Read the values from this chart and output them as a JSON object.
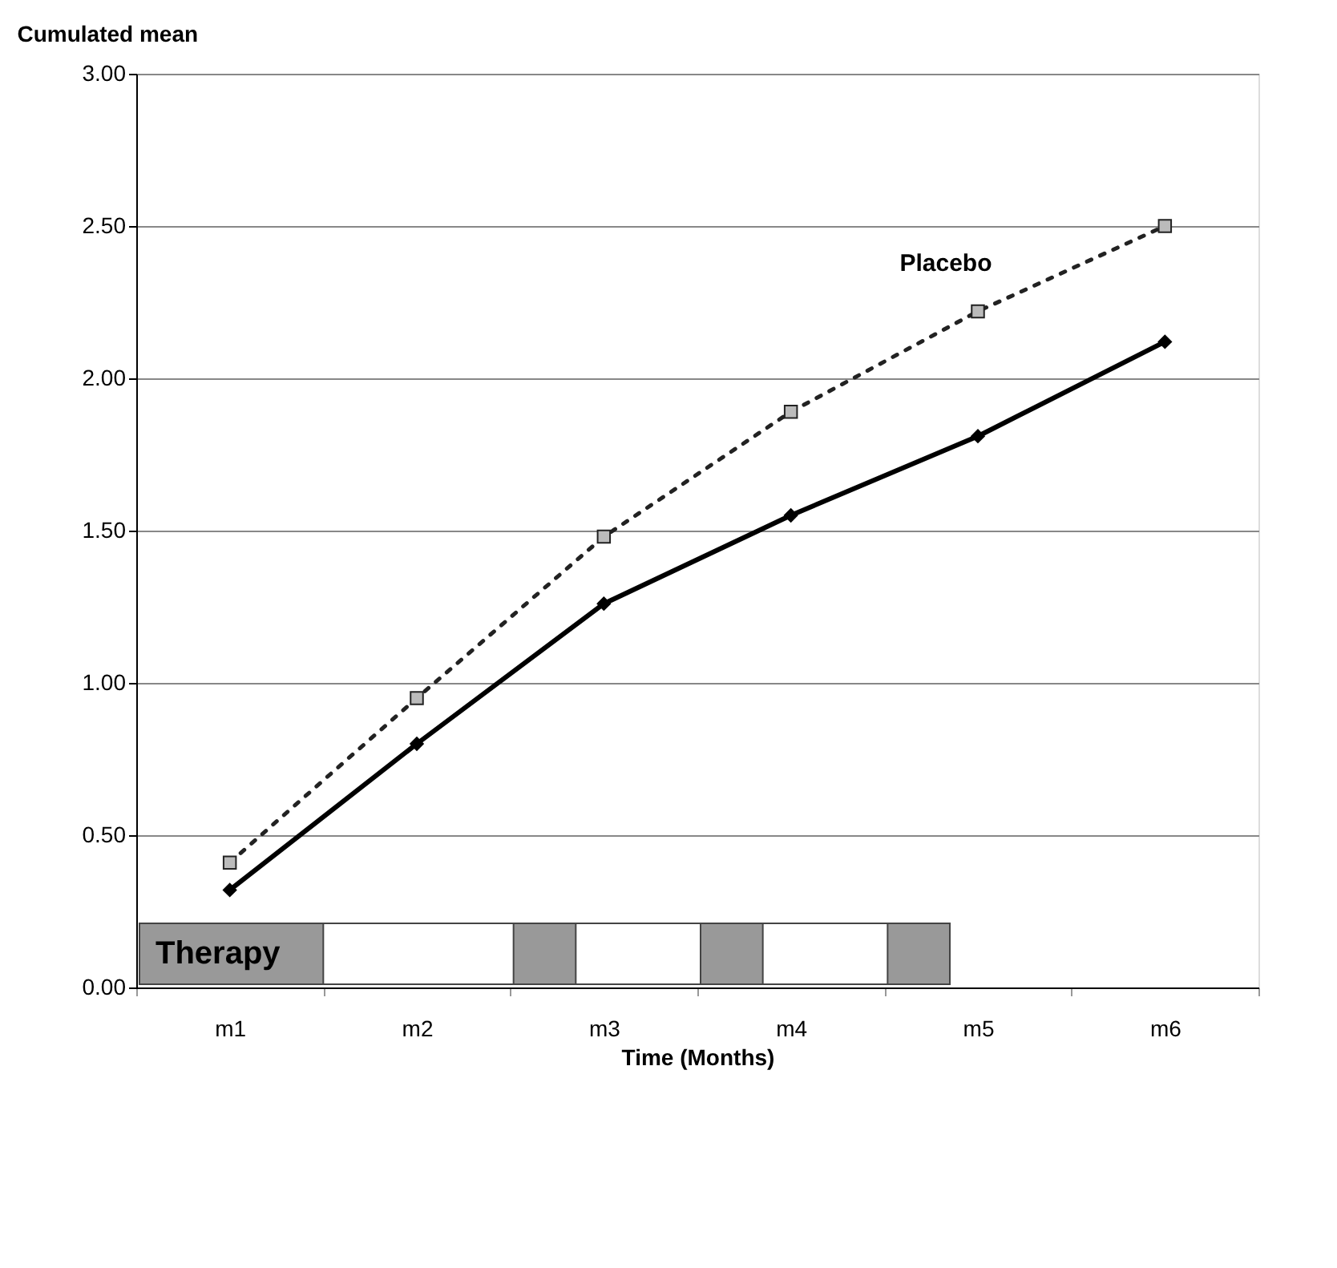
{
  "chart_data": {
    "type": "line",
    "ylabel": "Cumulated mean",
    "xlabel": "Time (Months)",
    "categories": [
      "m1",
      "m2",
      "m3",
      "m4",
      "m5",
      "m6"
    ],
    "ylim": [
      0,
      3
    ],
    "yticks": [
      {
        "value": 0,
        "label": "0.00"
      },
      {
        "value": 0.5,
        "label": "0.50"
      },
      {
        "value": 1,
        "label": "1.00"
      },
      {
        "value": 1.5,
        "label": "1.50"
      },
      {
        "value": 2,
        "label": "2.00"
      },
      {
        "value": 2.5,
        "label": "2.50"
      },
      {
        "value": 3,
        "label": "3.00"
      }
    ],
    "grid": "y",
    "series": [
      {
        "name": "Placebo",
        "color": "#222222",
        "marker": "square",
        "line_style": "dotted",
        "values": [
          0.41,
          0.95,
          1.48,
          1.89,
          2.22,
          2.5
        ]
      },
      {
        "color": "#000000",
        "marker": "diamond",
        "line_style": "solid",
        "values": [
          0.32,
          0.8,
          1.26,
          1.55,
          1.81,
          2.12
        ]
      }
    ],
    "annotations": [
      "Therapy"
    ]
  }
}
